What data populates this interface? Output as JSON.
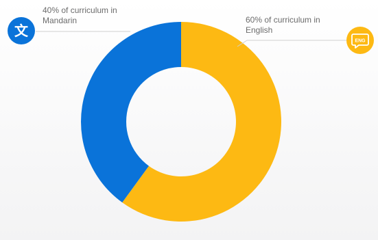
{
  "chart_data": {
    "type": "pie",
    "donut": true,
    "slices": [
      {
        "label_lines": [
          "60% of curriculum in",
          "English"
        ],
        "value": 60,
        "color": "#FDB913"
      },
      {
        "label_lines": [
          "40% of curriculum in",
          "Mandarin"
        ],
        "value": 40,
        "color": "#0A73D9"
      }
    ],
    "start_angle": "12 o'clock",
    "direction": "clockwise",
    "legend": "none"
  },
  "icons": {
    "mandarin": {
      "name": "chinese-character-icon",
      "glyph": "文",
      "color": "#0A73D9"
    },
    "english": {
      "name": "english-chat-bubble-icon",
      "text": "ENG",
      "color": "#FDB913"
    }
  }
}
